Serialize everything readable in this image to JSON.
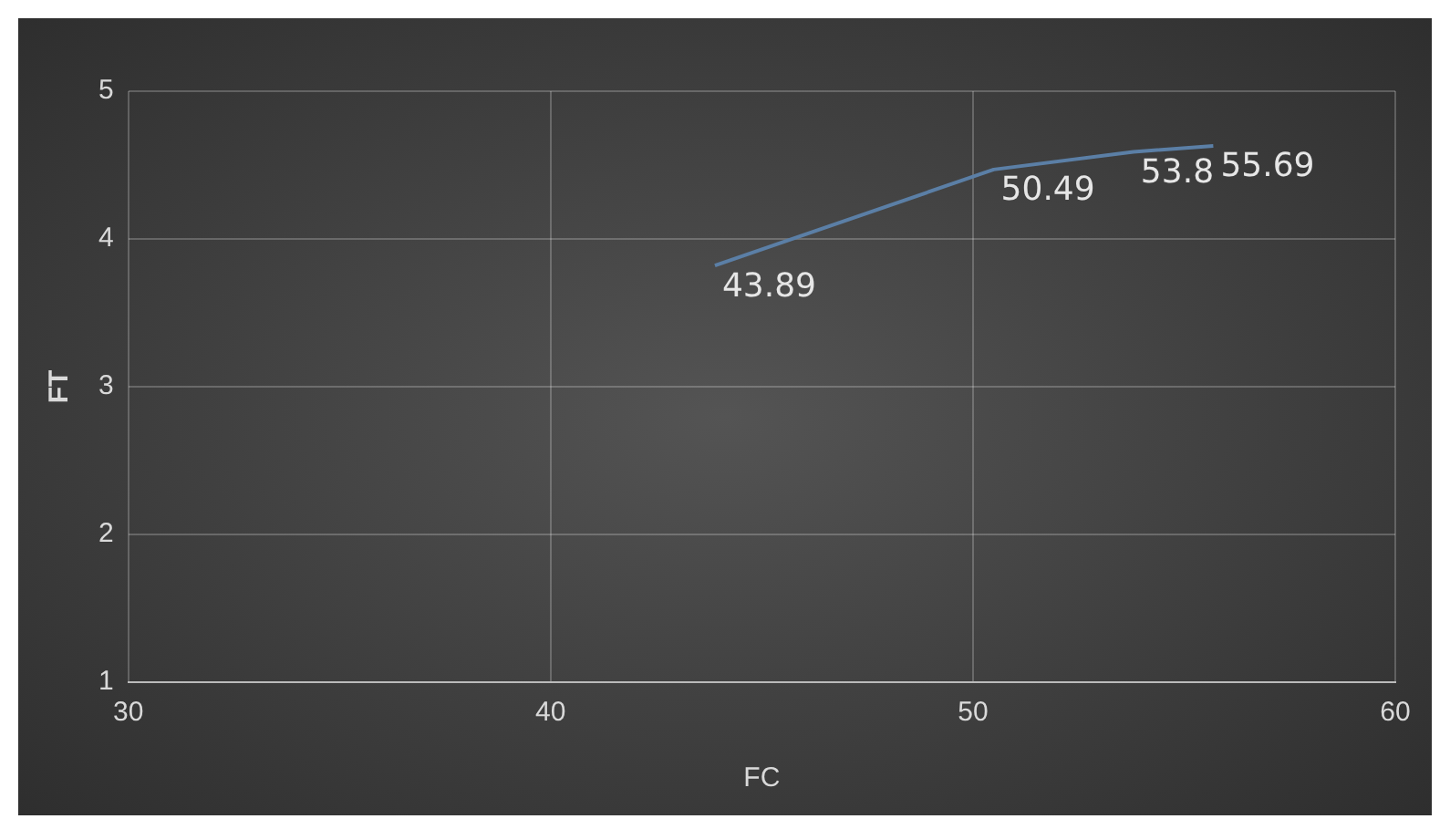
{
  "chart_data": {
    "type": "line",
    "xlabel": "FC",
    "ylabel": "FT",
    "x": [
      43.89,
      50.49,
      53.8,
      55.69
    ],
    "series": [
      {
        "color": "#5b7fa6",
        "values": [
          3.82,
          4.47,
          4.59,
          4.63
        ]
      }
    ],
    "annotations": [
      {
        "text": "43.89",
        "x": 43.89,
        "y": 3.82
      },
      {
        "text": "50.49",
        "x": 50.49,
        "y": 4.47
      },
      {
        "text": "53.8",
        "x": 53.8,
        "y": 4.59
      },
      {
        "text": "55.69",
        "x": 55.69,
        "y": 4.63
      }
    ],
    "xlim": [
      30,
      60
    ],
    "xticks": [
      30,
      40,
      50,
      60
    ],
    "ylim": [
      1,
      5
    ],
    "yticks": [
      1,
      2,
      3,
      4,
      5
    ],
    "grid": true,
    "legend": false,
    "marker": "none",
    "line_style": "solid"
  }
}
